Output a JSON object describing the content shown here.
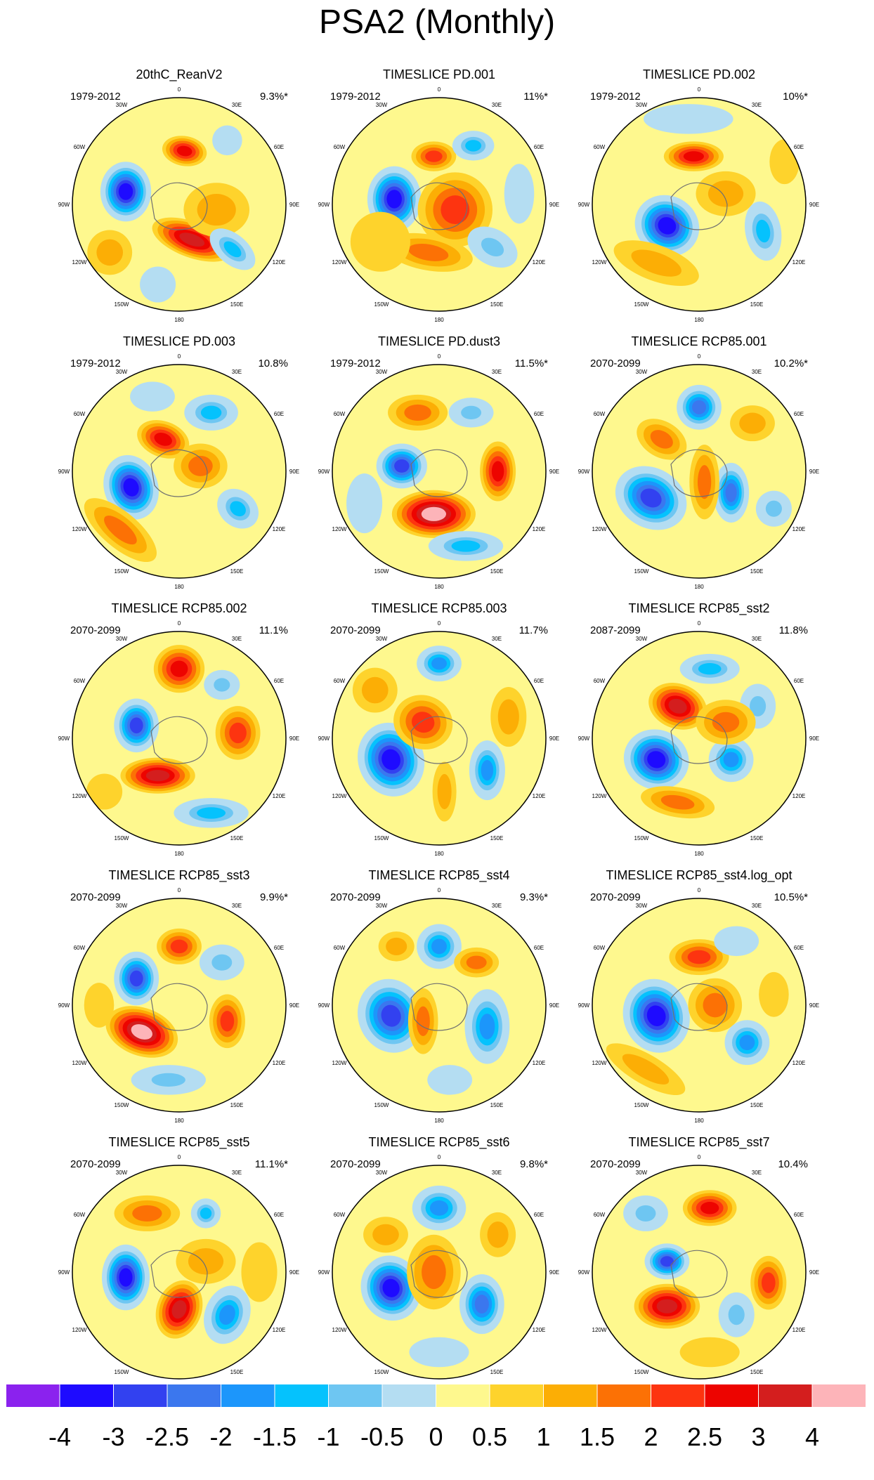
{
  "title": "PSA2 (Monthly)",
  "panels": [
    {
      "title": "20thC_ReanV2",
      "period": "1979-2012",
      "percent": "9.3%*",
      "blobs": [
        [
          -0.5,
          -0.12,
          -4,
          0.17,
          0.2,
          0
        ],
        [
          0.12,
          0.33,
          3,
          0.28,
          0.12,
          20
        ],
        [
          0.05,
          -0.5,
          2.5,
          0.15,
          0.1,
          10
        ],
        [
          0.35,
          0.05,
          1,
          0.22,
          0.18,
          0
        ],
        [
          0.5,
          0.42,
          -1.5,
          0.18,
          0.1,
          40
        ],
        [
          -0.65,
          0.45,
          1,
          0.15,
          0.15,
          0
        ],
        [
          0.45,
          -0.6,
          -0.5,
          0.1,
          0.1,
          0
        ],
        [
          -0.2,
          0.75,
          -0.5,
          0.12,
          0.12,
          0
        ]
      ]
    },
    {
      "title": "TIMESLICE PD.001",
      "period": "1979-2012",
      "percent": "11%*",
      "blobs": [
        [
          -0.42,
          -0.05,
          -4,
          0.18,
          0.22,
          0
        ],
        [
          -0.05,
          -0.45,
          2,
          0.15,
          0.1,
          0
        ],
        [
          0.15,
          0.05,
          2,
          0.25,
          0.25,
          0
        ],
        [
          0.32,
          -0.55,
          -1.5,
          0.14,
          0.1,
          0
        ],
        [
          0.5,
          0.4,
          -1,
          0.18,
          0.12,
          30
        ],
        [
          -0.1,
          0.45,
          1.5,
          0.3,
          0.12,
          10
        ],
        [
          -0.55,
          0.35,
          0.5,
          0.2,
          0.2,
          0
        ],
        [
          0.75,
          -0.1,
          -0.5,
          0.1,
          0.2,
          0
        ]
      ]
    },
    {
      "title": "TIMESLICE PD.002",
      "period": "1979-2012",
      "percent": "10%*",
      "blobs": [
        [
          -0.3,
          0.2,
          -4,
          0.22,
          0.2,
          30
        ],
        [
          -0.05,
          -0.45,
          2.5,
          0.2,
          0.1,
          0
        ],
        [
          0.25,
          -0.1,
          1,
          0.2,
          0.15,
          0
        ],
        [
          0.6,
          0.25,
          -1.5,
          0.12,
          0.2,
          -10
        ],
        [
          -0.4,
          0.55,
          1,
          0.3,
          0.12,
          20
        ],
        [
          -0.1,
          -0.8,
          -0.5,
          0.3,
          0.1,
          0
        ],
        [
          0.8,
          -0.4,
          0.5,
          0.1,
          0.15,
          0
        ]
      ]
    },
    {
      "title": "TIMESLICE PD.003",
      "period": "1979-2012",
      "percent": "10.8%",
      "blobs": [
        [
          -0.45,
          0.15,
          -4,
          0.18,
          0.22,
          -20
        ],
        [
          -0.15,
          -0.3,
          2.5,
          0.18,
          0.12,
          20
        ],
        [
          0.3,
          -0.55,
          -1.5,
          0.18,
          0.12,
          0
        ],
        [
          0.55,
          0.35,
          -1.5,
          0.15,
          0.12,
          40
        ],
        [
          -0.55,
          0.55,
          1.5,
          0.3,
          0.12,
          40
        ],
        [
          0.2,
          -0.05,
          1.5,
          0.18,
          0.15,
          0
        ],
        [
          -0.25,
          -0.7,
          -0.5,
          0.15,
          0.1,
          0
        ]
      ]
    },
    {
      "title": "TIMESLICE PD.dust3",
      "period": "1979-2012",
      "percent": "11.5%*",
      "blobs": [
        [
          -0.05,
          0.4,
          4,
          0.28,
          0.16,
          0
        ],
        [
          -0.35,
          -0.05,
          -3,
          0.17,
          0.15,
          0
        ],
        [
          0.55,
          0.0,
          2.5,
          0.12,
          0.2,
          0
        ],
        [
          -0.2,
          -0.55,
          1.5,
          0.2,
          0.12,
          0
        ],
        [
          0.25,
          0.7,
          -1.5,
          0.25,
          0.1,
          0
        ],
        [
          0.3,
          -0.55,
          -1,
          0.15,
          0.1,
          0
        ],
        [
          -0.7,
          0.3,
          -0.5,
          0.12,
          0.2,
          0
        ]
      ]
    },
    {
      "title": "TIMESLICE RCP85.001",
      "period": "2070-2099",
      "percent": "10.2%*",
      "blobs": [
        [
          -0.45,
          0.25,
          -3,
          0.25,
          0.2,
          30
        ],
        [
          0.0,
          -0.6,
          -2.5,
          0.15,
          0.15,
          0
        ],
        [
          0.3,
          0.2,
          -2.5,
          0.12,
          0.2,
          0
        ],
        [
          0.05,
          0.1,
          1.5,
          0.1,
          0.25,
          0
        ],
        [
          -0.35,
          -0.3,
          1.5,
          0.18,
          0.12,
          30
        ],
        [
          0.5,
          -0.45,
          1,
          0.15,
          0.12,
          0
        ],
        [
          0.7,
          0.35,
          -1,
          0.12,
          0.12,
          0
        ]
      ]
    },
    {
      "title": "TIMESLICE RCP85.002",
      "period": "2070-2099",
      "percent": "11.1%",
      "blobs": [
        [
          -0.4,
          -0.12,
          -3,
          0.15,
          0.18,
          0
        ],
        [
          -0.2,
          0.35,
          3.5,
          0.25,
          0.12,
          0
        ],
        [
          0.0,
          -0.65,
          2.5,
          0.17,
          0.16,
          0
        ],
        [
          0.55,
          -0.05,
          2,
          0.15,
          0.18,
          0
        ],
        [
          0.3,
          0.7,
          -1.5,
          0.25,
          0.1,
          0
        ],
        [
          0.4,
          -0.5,
          -1,
          0.12,
          0.1,
          0
        ],
        [
          -0.7,
          0.5,
          0.5,
          0.12,
          0.12,
          0
        ]
      ]
    },
    {
      "title": "TIMESLICE RCP85.003",
      "period": "2070-2099",
      "percent": "11.7%",
      "blobs": [
        [
          -0.45,
          0.2,
          -4,
          0.22,
          0.25,
          -20
        ],
        [
          0.0,
          -0.7,
          -2,
          0.15,
          0.12,
          0
        ],
        [
          0.45,
          0.3,
          -2,
          0.12,
          0.2,
          0
        ],
        [
          -0.15,
          -0.15,
          2,
          0.2,
          0.18,
          20
        ],
        [
          -0.6,
          -0.45,
          1,
          0.15,
          0.15,
          0
        ],
        [
          0.05,
          0.5,
          1,
          0.08,
          0.2,
          0
        ],
        [
          0.65,
          -0.2,
          1,
          0.12,
          0.2,
          0
        ]
      ]
    },
    {
      "title": "TIMESLICE RCP85_sst2",
      "period": "2087-2099",
      "percent": "11.8%",
      "blobs": [
        [
          -0.4,
          0.2,
          -4,
          0.22,
          0.2,
          20
        ],
        [
          -0.2,
          -0.3,
          3,
          0.2,
          0.15,
          20
        ],
        [
          0.3,
          0.2,
          -2,
          0.15,
          0.15,
          0
        ],
        [
          -0.2,
          0.6,
          1.5,
          0.25,
          0.1,
          10
        ],
        [
          0.1,
          -0.65,
          -1.5,
          0.2,
          0.1,
          0
        ],
        [
          0.55,
          -0.3,
          -1,
          0.12,
          0.15,
          0
        ],
        [
          0.25,
          -0.15,
          1.5,
          0.2,
          0.15,
          0
        ]
      ]
    },
    {
      "title": "TIMESLICE RCP85_sst3",
      "period": "2070-2099",
      "percent": "9.9%*",
      "blobs": [
        [
          -0.35,
          0.25,
          4,
          0.25,
          0.16,
          20
        ],
        [
          -0.4,
          -0.25,
          -3,
          0.15,
          0.18,
          0
        ],
        [
          0.0,
          -0.55,
          2,
          0.15,
          0.12,
          0
        ],
        [
          0.45,
          0.15,
          2,
          0.12,
          0.18,
          0
        ],
        [
          0.4,
          -0.4,
          -1,
          0.15,
          0.12,
          0
        ],
        [
          -0.1,
          0.7,
          -1,
          0.25,
          0.1,
          0
        ],
        [
          -0.75,
          0.0,
          0.5,
          0.1,
          0.15,
          0
        ]
      ]
    },
    {
      "title": "TIMESLICE RCP85_sst4",
      "period": "2070-2099",
      "percent": "9.3%*",
      "blobs": [
        [
          -0.45,
          0.1,
          -3.5,
          0.22,
          0.25,
          -20
        ],
        [
          0.0,
          -0.55,
          -2,
          0.15,
          0.15,
          0
        ],
        [
          0.45,
          0.2,
          -2,
          0.15,
          0.25,
          0
        ],
        [
          -0.15,
          0.15,
          1.5,
          0.1,
          0.22,
          0
        ],
        [
          0.35,
          -0.4,
          1.5,
          0.15,
          0.1,
          0
        ],
        [
          -0.4,
          -0.55,
          1,
          0.12,
          0.1,
          0
        ],
        [
          0.1,
          0.7,
          -0.5,
          0.15,
          0.1,
          0
        ]
      ]
    },
    {
      "title": "TIMESLICE RCP85_sst4.log_opt",
      "period": "2070-2099",
      "percent": "10.5%*",
      "blobs": [
        [
          -0.4,
          0.1,
          -4,
          0.22,
          0.25,
          -20
        ],
        [
          0.0,
          -0.45,
          2,
          0.2,
          0.12,
          0
        ],
        [
          0.15,
          0.0,
          1.5,
          0.18,
          0.18,
          0
        ],
        [
          0.45,
          0.35,
          -2,
          0.15,
          0.15,
          0
        ],
        [
          -0.5,
          0.6,
          1,
          0.3,
          0.1,
          30
        ],
        [
          0.35,
          -0.6,
          -0.5,
          0.15,
          0.1,
          0
        ],
        [
          0.7,
          -0.1,
          0.5,
          0.1,
          0.15,
          0
        ]
      ]
    },
    {
      "title": "TIMESLICE RCP85_sst5",
      "period": "2070-2099",
      "percent": "11.1%*",
      "blobs": [
        [
          -0.5,
          0.05,
          -4,
          0.16,
          0.22,
          0
        ],
        [
          0.0,
          0.35,
          3,
          0.15,
          0.2,
          20
        ],
        [
          0.45,
          0.4,
          -2,
          0.15,
          0.2,
          20
        ],
        [
          -0.3,
          -0.55,
          1.5,
          0.22,
          0.12,
          0
        ],
        [
          0.25,
          -0.1,
          1,
          0.2,
          0.15,
          0
        ],
        [
          0.25,
          -0.55,
          -1.5,
          0.1,
          0.1,
          0
        ],
        [
          0.75,
          0.0,
          0.5,
          0.12,
          0.2,
          0
        ]
      ]
    },
    {
      "title": "TIMESLICE RCP85_sst6",
      "period": "2070-2099",
      "percent": "9.8%*",
      "blobs": [
        [
          -0.45,
          0.15,
          -4,
          0.2,
          0.22,
          -20
        ],
        [
          0.0,
          -0.6,
          -2,
          0.18,
          0.15,
          0
        ],
        [
          0.4,
          0.3,
          -2.5,
          0.15,
          0.2,
          0
        ],
        [
          -0.05,
          0.0,
          1.5,
          0.18,
          0.25,
          0
        ],
        [
          -0.5,
          -0.35,
          1,
          0.15,
          0.12,
          0
        ],
        [
          0.55,
          -0.35,
          1,
          0.12,
          0.15,
          0
        ],
        [
          0.0,
          0.75,
          -0.5,
          0.2,
          0.1,
          0
        ]
      ]
    },
    {
      "title": "TIMESLICE RCP85_sst7",
      "period": "2070-2099",
      "percent": "10.4%",
      "blobs": [
        [
          -0.3,
          0.32,
          3,
          0.22,
          0.15,
          0
        ],
        [
          -0.3,
          -0.1,
          -3,
          0.15,
          0.12,
          0
        ],
        [
          0.1,
          -0.6,
          2.5,
          0.18,
          0.12,
          0
        ],
        [
          0.65,
          0.1,
          2,
          0.12,
          0.18,
          0
        ],
        [
          0.35,
          0.4,
          -1,
          0.12,
          0.15,
          0
        ],
        [
          -0.5,
          -0.55,
          -1,
          0.15,
          0.12,
          0
        ],
        [
          0.1,
          0.75,
          0.5,
          0.2,
          0.1,
          0
        ]
      ]
    }
  ],
  "map_labels": {
    "top": "0",
    "bottom": "180",
    "left": [
      "30W",
      "60W",
      "90W",
      "120W",
      "150W"
    ],
    "right": [
      "30E",
      "60E",
      "90E",
      "120E",
      "150E"
    ]
  },
  "chart_data": {
    "type": "heatmap",
    "title": "PSA2 (Monthly)",
    "colorbar_labels": [
      "-4",
      "-3",
      "-2.5",
      "-2",
      "-1.5",
      "-1",
      "-0.5",
      "0",
      "0.5",
      "1",
      "1.5",
      "2",
      "2.5",
      "3",
      "4"
    ],
    "levels": [
      -4,
      -3,
      -2.5,
      -2,
      -1.5,
      -1,
      -0.5,
      0,
      0.5,
      1,
      1.5,
      2,
      2.5,
      3,
      4
    ],
    "colors": [
      "#8b22ee",
      "#1e0bff",
      "#3241f0",
      "#3b77ee",
      "#1c96fb",
      "#05c2fd",
      "#6ec6f2",
      "#b4ddf2",
      "#fef88e",
      "#fed32c",
      "#fcae05",
      "#fc7105",
      "#fd3410",
      "#ed0400",
      "#d41e1e",
      "#fdb4b9"
    ]
  }
}
